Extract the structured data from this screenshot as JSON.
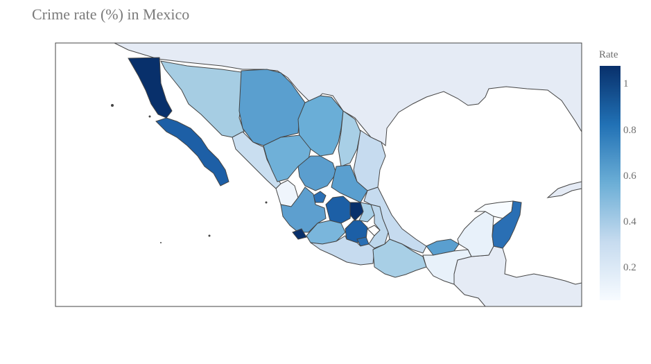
{
  "title": "Crime rate (%) in Mexico",
  "colorbar": {
    "title": "Rate",
    "ticks": [
      "1",
      "0.8",
      "0.6",
      "0.4",
      "0.2"
    ],
    "colors": [
      "#f7fbff",
      "#c6dbef",
      "#6baed6",
      "#2171b5",
      "#08306b"
    ]
  },
  "map_colors": {
    "land_foreign": "#e5ebf5",
    "water": "#ffffff",
    "border": "#444444"
  }
}
